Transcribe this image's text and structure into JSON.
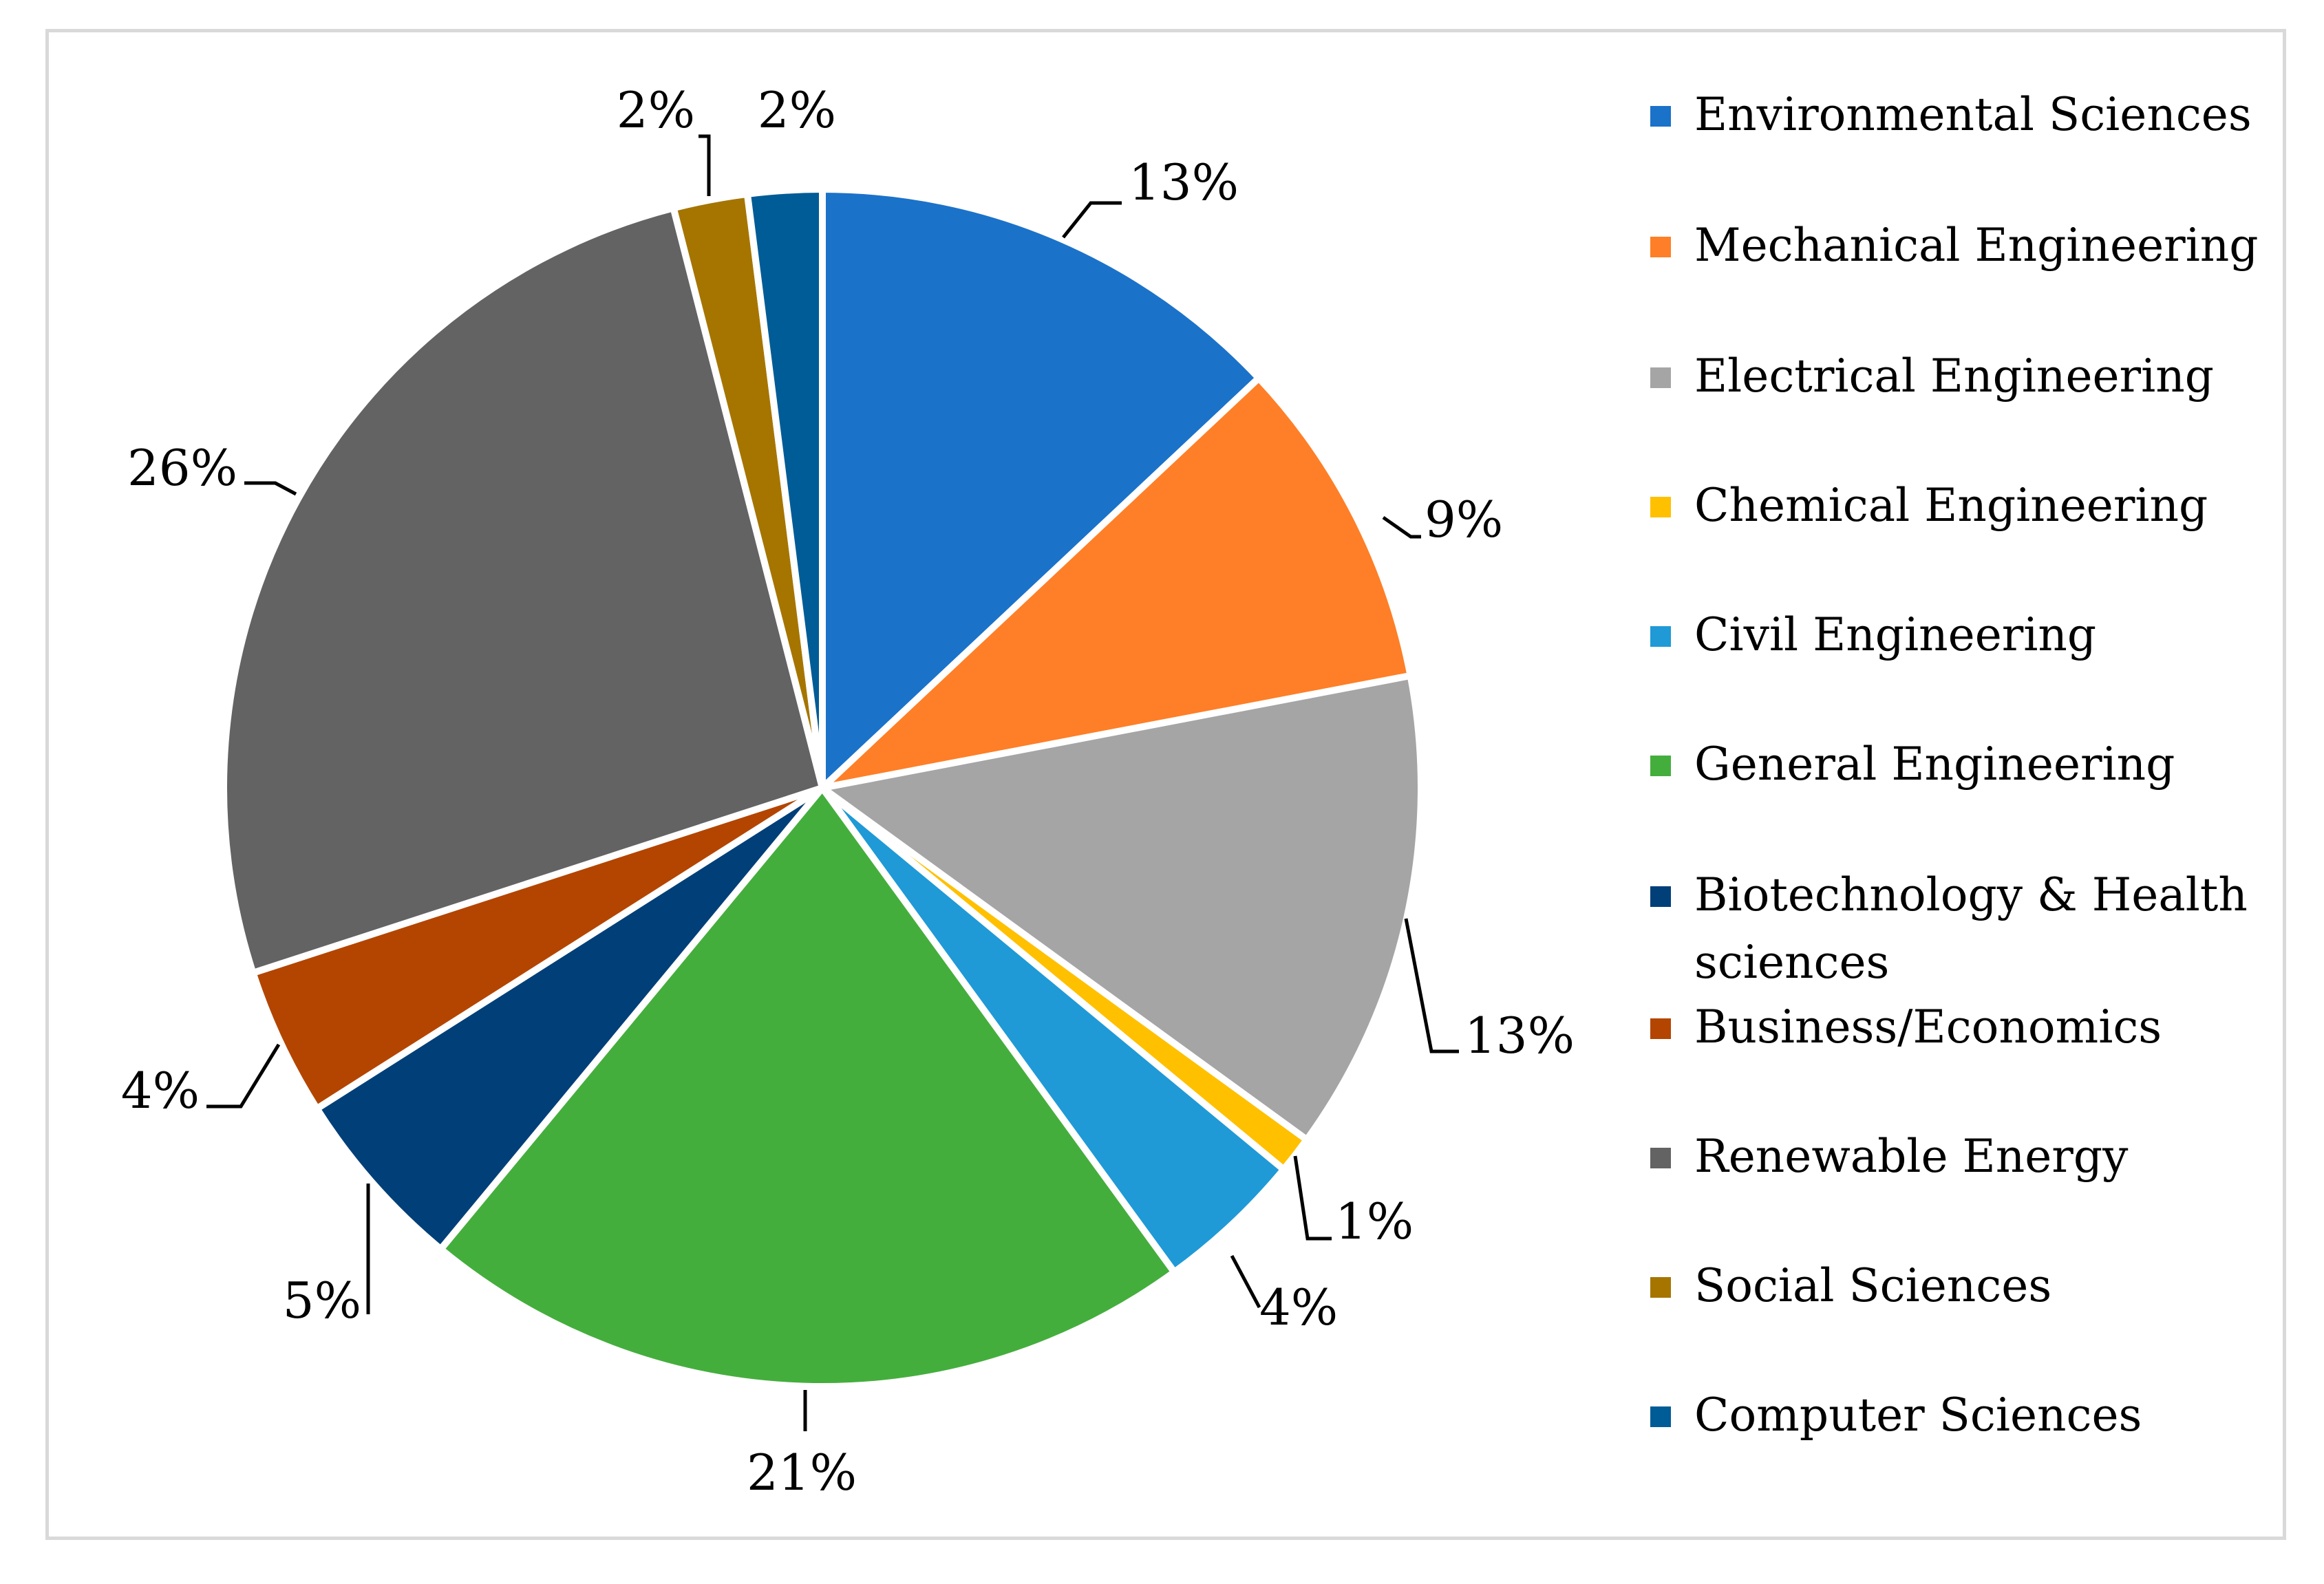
{
  "chart_data": {
    "type": "pie",
    "title": "",
    "slices": [
      {
        "label": "Environmental Sciences",
        "value": 13,
        "display": "13%",
        "color": "#1B72C9"
      },
      {
        "label": "Mechanical Engineering",
        "value": 9,
        "display": "9%",
        "color": "#FE7F27"
      },
      {
        "label": "Electrical Engineering",
        "value": 13,
        "display": "13%",
        "color": "#A5A5A5"
      },
      {
        "label": "Chemical Engineering",
        "value": 1,
        "display": "1%",
        "color": "#FFC000"
      },
      {
        "label": "Civil Engineering",
        "value": 4,
        "display": "4%",
        "color": "#1F9AD6"
      },
      {
        "label": "General Engineering",
        "value": 21,
        "display": "21%",
        "color": "#44AE3D"
      },
      {
        "label": "Biotechnology & Health sciences",
        "value": 5,
        "display": "5%",
        "color": "#003F78"
      },
      {
        "label": "Business/Economics",
        "value": 4,
        "display": "4%",
        "color": "#B34500"
      },
      {
        "label": "Renewable Energy",
        "value": 26,
        "display": "26%",
        "color": "#636363"
      },
      {
        "label": "Social Sciences",
        "value": 2,
        "display": "2%",
        "color": "#A57500"
      },
      {
        "label": "Computer Sciences",
        "value": 2,
        "display": "2%",
        "color": "#005C96"
      }
    ],
    "legend_position": "right"
  }
}
